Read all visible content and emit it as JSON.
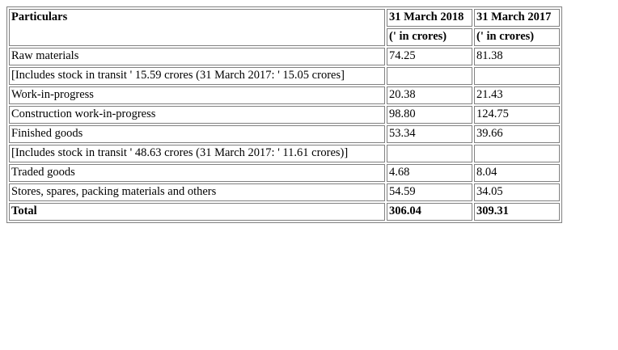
{
  "table": {
    "header": {
      "particulars": "Particulars",
      "year1": "31 March 2018",
      "year2": "31 March 2017",
      "unit1": "(' in crores)",
      "unit2": "(' in crores)"
    },
    "rows": [
      {
        "label": "Raw materials",
        "v2018": "74.25",
        "v2017": "81.38"
      },
      {
        "label": "[Includes stock in transit ' 15.59 crores (31 March 2017: ' 15.05 crores]",
        "v2018": "",
        "v2017": ""
      },
      {
        "label": "Work-in-progress",
        "v2018": "20.38",
        "v2017": "21.43"
      },
      {
        "label": "Construction work-in-progress",
        "v2018": "98.80",
        "v2017": "124.75"
      },
      {
        "label": "Finished goods",
        "v2018": "53.34",
        "v2017": "39.66"
      },
      {
        "label": "[Includes stock in transit ' 48.63 crores (31 March 2017: ' 11.61 crores)]",
        "v2018": "",
        "v2017": ""
      },
      {
        "label": "Traded goods",
        "v2018": "4.68",
        "v2017": "8.04"
      },
      {
        "label": "Stores, spares, packing materials and others",
        "v2018": "54.59",
        "v2017": "34.05"
      }
    ],
    "total": {
      "label": "Total",
      "v2018": "306.04",
      "v2017": "309.31"
    }
  }
}
